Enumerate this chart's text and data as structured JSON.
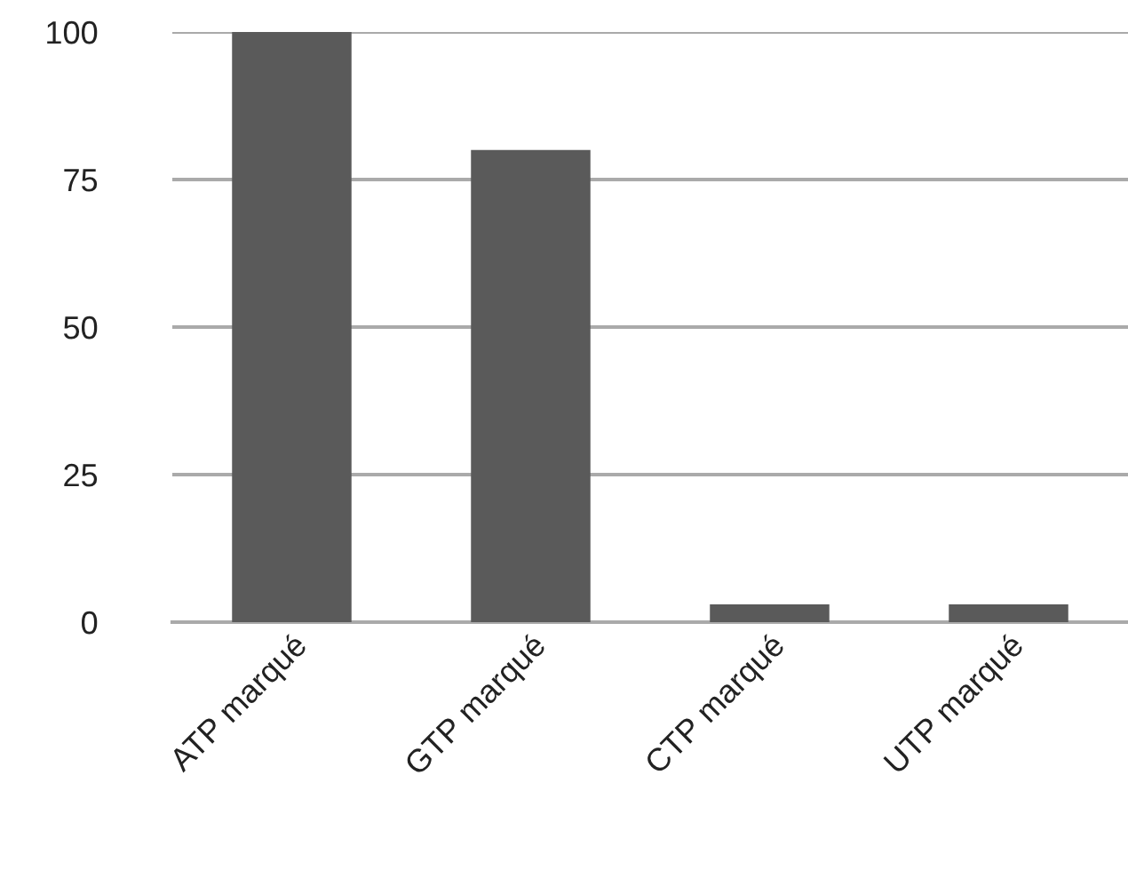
{
  "chart_data": {
    "type": "bar",
    "categories": [
      "ATP marqué",
      "GTP marqué",
      "CTP marqué",
      "UTP marqué"
    ],
    "values": [
      100,
      80,
      3,
      3
    ],
    "color": "#5a5a5a",
    "ylim": [
      0,
      100
    ],
    "yticks": [
      0,
      25,
      50,
      75,
      100
    ],
    "grid": "y"
  }
}
